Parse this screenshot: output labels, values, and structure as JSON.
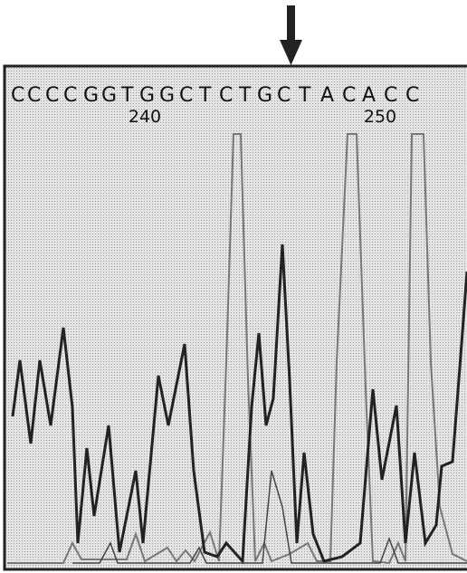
{
  "sequence": [
    "C",
    "C",
    "C",
    "C",
    "G",
    "G",
    "T",
    "G",
    "G",
    "C",
    "T",
    "C",
    "T",
    "G",
    "C",
    "T",
    "A",
    "C",
    "A",
    "C",
    "C"
  ],
  "position_labels": [
    "240",
    "250"
  ]
}
